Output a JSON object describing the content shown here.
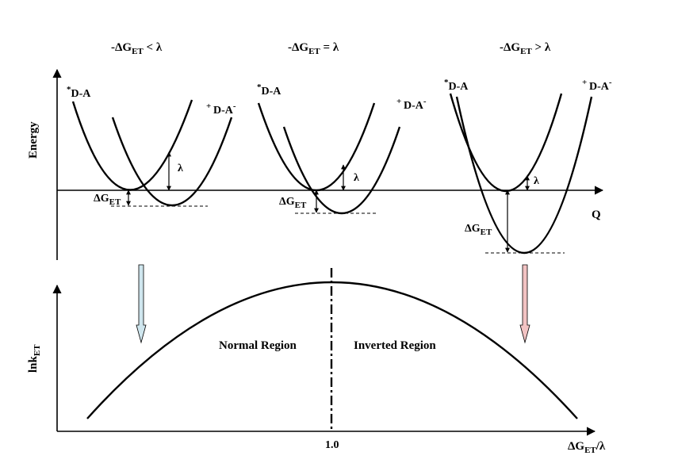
{
  "panels": [
    {
      "condition": {
        "prefix": "-ΔG",
        "sub": "ET",
        "rel": " < λ"
      },
      "reactant": {
        "sup": "*",
        "main": "D-A"
      },
      "product": {
        "sup": "+ ",
        "main": "D-A",
        "sup2": "-"
      },
      "lambda": "λ",
      "delta_g": {
        "main": "ΔG",
        "sub": "ET"
      }
    },
    {
      "condition": {
        "prefix": "-ΔG",
        "sub": "ET",
        "rel": " = λ"
      },
      "reactant": {
        "sup": "*",
        "main": "D-A"
      },
      "product": {
        "sup": "+ ",
        "main": "D-A",
        "sup2": "-"
      },
      "lambda": "λ",
      "delta_g": {
        "main": "ΔG",
        "sub": "ET"
      }
    },
    {
      "condition": {
        "prefix": "-ΔG",
        "sub": "ET",
        "rel": " > λ"
      },
      "reactant": {
        "sup": "*",
        "main": "D-A"
      },
      "product": {
        "sup": "+ ",
        "main": "D-A",
        "sup2": "-"
      },
      "lambda": "λ",
      "delta_g": {
        "main": "ΔG",
        "sub": "ET"
      }
    }
  ],
  "top_plot": {
    "y_axis_label": "Energy",
    "x_axis_label": "Q"
  },
  "bottom_plot": {
    "y_axis_label": {
      "main": "lnk",
      "sub": "ET"
    },
    "x_axis_label": {
      "main": "ΔG",
      "sub": "ET",
      "suffix": "/λ"
    },
    "x_tick": "1.0",
    "normal_region": "Normal Region",
    "inverted_region": "Inverted Region"
  },
  "colors": {
    "left_arrow": "#cfe6ee",
    "right_arrow": "#f2c3c3",
    "line": "#000000"
  }
}
